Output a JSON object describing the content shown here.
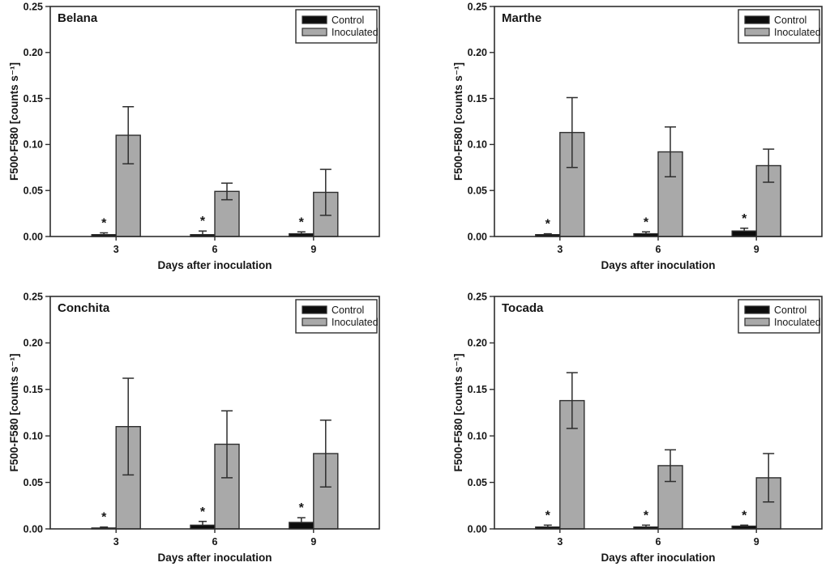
{
  "figure": {
    "background": "#ffffff",
    "text_color": "#161616",
    "axis_color": "#2e2e2e",
    "legend": {
      "labels": [
        "Control",
        "Inoculated"
      ],
      "position": "top-right"
    },
    "significance_marker": "*"
  },
  "chart_data": [
    {
      "type": "bar",
      "title": "Belana",
      "xlabel": "Days after inoculation",
      "ylabel": "F500-F580 [counts s⁻¹]",
      "ylim": [
        0,
        0.25
      ],
      "yticks": [
        0,
        0.05,
        0.1,
        0.15,
        0.2,
        0.25
      ],
      "categories": [
        "3",
        "6",
        "9"
      ],
      "grid": false,
      "legend_position": "top-right",
      "series": [
        {
          "name": "Control",
          "color": "#0d0d0d",
          "values": [
            0.002,
            0.002,
            0.003
          ],
          "errors": [
            0.002,
            0.004,
            0.002
          ],
          "significance": [
            "*",
            "*",
            "*"
          ]
        },
        {
          "name": "Inoculated",
          "color": "#a9a9a9",
          "values": [
            0.11,
            0.049,
            0.048
          ],
          "errors": [
            0.031,
            0.009,
            0.025
          ],
          "significance": [
            "",
            "",
            ""
          ]
        }
      ]
    },
    {
      "type": "bar",
      "title": "Marthe",
      "xlabel": "Days after inoculation",
      "ylabel": "F500-F580 [counts s⁻¹]",
      "ylim": [
        0,
        0.25
      ],
      "yticks": [
        0,
        0.05,
        0.1,
        0.15,
        0.2,
        0.25
      ],
      "categories": [
        "3",
        "6",
        "9"
      ],
      "grid": false,
      "legend_position": "top-right",
      "series": [
        {
          "name": "Control",
          "color": "#0d0d0d",
          "values": [
            0.002,
            0.003,
            0.006
          ],
          "errors": [
            0.001,
            0.002,
            0.003
          ],
          "significance": [
            "*",
            "*",
            "*"
          ]
        },
        {
          "name": "Inoculated",
          "color": "#a9a9a9",
          "values": [
            0.113,
            0.092,
            0.077
          ],
          "errors": [
            0.038,
            0.027,
            0.018
          ],
          "significance": [
            "",
            "",
            ""
          ]
        }
      ]
    },
    {
      "type": "bar",
      "title": "Conchita",
      "xlabel": "Days after inoculation",
      "ylabel": "F500-F580 [counts s⁻¹]",
      "ylim": [
        0,
        0.25
      ],
      "yticks": [
        0,
        0.05,
        0.1,
        0.15,
        0.2,
        0.25
      ],
      "categories": [
        "3",
        "6",
        "9"
      ],
      "grid": false,
      "legend_position": "top-right",
      "series": [
        {
          "name": "Control",
          "color": "#0d0d0d",
          "values": [
            0.001,
            0.004,
            0.007
          ],
          "errors": [
            0.001,
            0.004,
            0.005
          ],
          "significance": [
            "*",
            "*",
            "*"
          ]
        },
        {
          "name": "Inoculated",
          "color": "#a9a9a9",
          "values": [
            0.11,
            0.091,
            0.081
          ],
          "errors": [
            0.052,
            0.036,
            0.036
          ],
          "significance": [
            "",
            "",
            ""
          ]
        }
      ]
    },
    {
      "type": "bar",
      "title": "Tocada",
      "xlabel": "Days after inoculation",
      "ylabel": "F500-F580 [counts s⁻¹]",
      "ylim": [
        0,
        0.25
      ],
      "yticks": [
        0,
        0.05,
        0.1,
        0.15,
        0.2,
        0.25
      ],
      "categories": [
        "3",
        "6",
        "9"
      ],
      "grid": false,
      "legend_position": "top-right",
      "series": [
        {
          "name": "Control",
          "color": "#0d0d0d",
          "values": [
            0.002,
            0.002,
            0.003
          ],
          "errors": [
            0.002,
            0.002,
            0.001
          ],
          "significance": [
            "*",
            "*",
            "*"
          ]
        },
        {
          "name": "Inoculated",
          "color": "#a9a9a9",
          "values": [
            0.138,
            0.068,
            0.055
          ],
          "errors": [
            0.03,
            0.017,
            0.026
          ],
          "significance": [
            "",
            "",
            ""
          ]
        }
      ]
    }
  ]
}
